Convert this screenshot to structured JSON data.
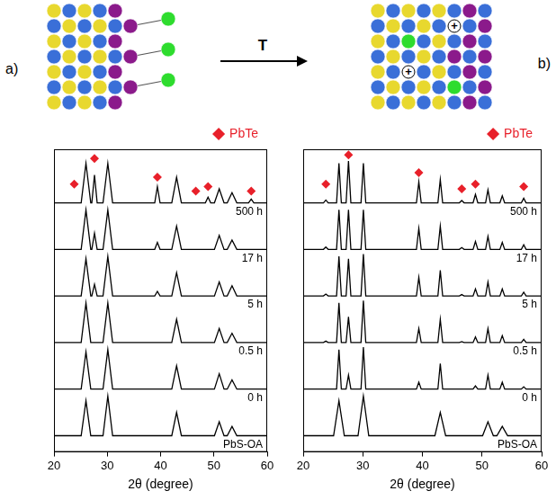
{
  "schematic": {
    "arrow_label": "T",
    "charge_label": "+"
  },
  "chart_data": [
    {
      "type": "line",
      "title": "a)",
      "x_label": "2θ (degree)",
      "xlim": [
        20,
        60
      ],
      "xticks": [
        20,
        30,
        40,
        50,
        60
      ],
      "ylim": [
        0,
        6.5
      ],
      "tick_labels": "x",
      "grid": false,
      "legend": "upper right",
      "series": [
        {
          "name": "PbS-OA",
          "color": "#000000",
          "x": [
            20,
            25.1,
            26.0,
            26.9,
            29.2,
            30.1,
            31.0,
            42.1,
            43.0,
            43.9,
            50.1,
            51.0,
            51.9,
            52.5,
            53.4,
            54.3,
            60
          ],
          "values": [
            0.35,
            0.35,
            1.1,
            0.35,
            0.35,
            1.2,
            0.35,
            0.35,
            0.85,
            0.35,
            0.35,
            0.65,
            0.35,
            0.35,
            0.55,
            0.35,
            0.35
          ]
        },
        {
          "name": "0 h",
          "color": "#000000",
          "x": [
            20,
            25.1,
            26.0,
            26.9,
            29.2,
            30.1,
            31.0,
            42.1,
            43.0,
            43.9,
            50.1,
            51.0,
            51.9,
            52.5,
            53.4,
            54.3,
            60
          ],
          "values": [
            1.35,
            1.35,
            2.15,
            1.35,
            1.35,
            2.2,
            1.35,
            1.35,
            1.85,
            1.35,
            1.35,
            1.68,
            1.35,
            1.35,
            1.55,
            1.35,
            1.35
          ]
        },
        {
          "name": "0.5 h",
          "color": "#000000",
          "x": [
            20,
            25.1,
            26.0,
            26.9,
            29.2,
            30.1,
            31.0,
            42.1,
            43.0,
            43.9,
            50.1,
            51.0,
            51.9,
            52.5,
            53.4,
            54.3,
            60
          ],
          "values": [
            2.35,
            2.35,
            3.2,
            2.35,
            2.35,
            3.2,
            2.35,
            2.35,
            2.85,
            2.35,
            2.35,
            2.65,
            2.35,
            2.35,
            2.55,
            2.35,
            2.35
          ]
        },
        {
          "name": "5 h",
          "color": "#000000",
          "x": [
            20,
            25.1,
            26.0,
            26.9,
            27.1,
            27.6,
            28.1,
            29.2,
            30.1,
            31.0,
            38.9,
            39.4,
            39.9,
            42.1,
            43.0,
            43.9,
            50.1,
            51.0,
            51.9,
            52.5,
            53.4,
            54.3,
            60
          ],
          "values": [
            3.35,
            3.35,
            4.15,
            3.35,
            3.35,
            3.6,
            3.35,
            3.35,
            4.2,
            3.35,
            3.35,
            3.45,
            3.35,
            3.35,
            3.85,
            3.35,
            3.35,
            3.65,
            3.35,
            3.35,
            3.57,
            3.35,
            3.35
          ]
        },
        {
          "name": "17 h",
          "color": "#000000",
          "x": [
            20,
            25.1,
            26.0,
            26.9,
            27.1,
            27.6,
            28.1,
            29.2,
            30.1,
            31.0,
            38.9,
            39.4,
            39.9,
            42.1,
            43.0,
            43.9,
            50.1,
            51.0,
            51.9,
            52.5,
            53.4,
            54.3,
            60
          ],
          "values": [
            4.35,
            4.35,
            5.2,
            4.35,
            4.35,
            4.7,
            4.35,
            4.35,
            5.2,
            4.35,
            4.35,
            4.5,
            4.35,
            4.35,
            4.85,
            4.35,
            4.35,
            4.65,
            4.35,
            4.35,
            4.55,
            4.35,
            4.35
          ]
        },
        {
          "name": "500 h",
          "color": "#000000",
          "x": [
            20,
            25.1,
            26.0,
            26.9,
            27.1,
            27.6,
            28.1,
            29.2,
            30.1,
            31.0,
            38.9,
            39.4,
            39.9,
            42.1,
            43.0,
            43.9,
            48.4,
            48.9,
            49.4,
            50.1,
            51.0,
            51.9,
            52.5,
            53.4,
            54.3,
            56.5,
            57.0,
            57.5,
            60
          ],
          "values": [
            5.35,
            5.35,
            6.2,
            5.35,
            5.35,
            5.95,
            5.35,
            5.35,
            6.2,
            5.35,
            5.35,
            5.7,
            5.35,
            5.35,
            5.9,
            5.35,
            5.35,
            5.47,
            5.35,
            5.35,
            5.65,
            5.35,
            5.35,
            5.57,
            5.35,
            5.35,
            5.43,
            5.35,
            5.35
          ]
        },
        {
          "name": "PbTe",
          "type": "scatter",
          "marker": "diamond",
          "color": "#e8202a",
          "x": [
            23.8,
            27.6,
            39.4,
            46.6,
            48.9,
            57.0
          ],
          "values": [
            5.75,
            6.3,
            5.9,
            5.6,
            5.7,
            5.6
          ]
        }
      ]
    },
    {
      "type": "line",
      "title": "b)",
      "x_label": "2θ (degree)",
      "xlim": [
        20,
        60
      ],
      "xticks": [
        20,
        30,
        40,
        50,
        60
      ],
      "ylim": [
        0,
        6.5
      ],
      "tick_labels": "x",
      "grid": false,
      "legend": "upper right",
      "series": [
        {
          "name": "PbS-OA",
          "color": "#000000",
          "x": [
            20,
            25.1,
            26.0,
            26.9,
            29.2,
            30.1,
            31.0,
            42.1,
            43.0,
            43.9,
            50.1,
            51.0,
            51.9,
            52.5,
            53.4,
            54.3,
            60
          ],
          "values": [
            0.35,
            0.35,
            1.1,
            0.35,
            0.35,
            1.2,
            0.35,
            0.35,
            0.85,
            0.35,
            0.35,
            0.65,
            0.35,
            0.35,
            0.55,
            0.35,
            0.35
          ]
        },
        {
          "name": "0 h",
          "color": "#000000",
          "x": [
            20,
            23.4,
            23.8,
            24.2,
            25.6,
            26.0,
            26.4,
            27.2,
            27.6,
            28.0,
            29.7,
            30.1,
            30.5,
            39.0,
            39.4,
            39.8,
            42.6,
            43.0,
            43.4,
            46.2,
            46.6,
            47.0,
            48.5,
            48.9,
            49.3,
            50.6,
            51.0,
            51.4,
            53.0,
            53.4,
            53.8,
            56.6,
            57.0,
            57.4,
            60
          ],
          "values": [
            1.35,
            1.35,
            1.35,
            1.35,
            1.35,
            2.2,
            1.35,
            1.35,
            1.65,
            1.35,
            1.35,
            2.25,
            1.35,
            1.35,
            1.5,
            1.35,
            1.35,
            1.9,
            1.35,
            1.35,
            1.35,
            1.35,
            1.35,
            1.42,
            1.35,
            1.35,
            1.65,
            1.35,
            1.35,
            1.5,
            1.35,
            1.35,
            1.4,
            1.35,
            1.35
          ]
        },
        {
          "name": "0.5 h",
          "color": "#000000",
          "x": [
            20,
            23.4,
            23.8,
            24.2,
            25.6,
            26.0,
            26.4,
            27.2,
            27.6,
            28.0,
            29.7,
            30.1,
            30.5,
            39.0,
            39.4,
            39.8,
            42.6,
            43.0,
            43.4,
            46.2,
            46.6,
            47.0,
            48.5,
            48.9,
            49.3,
            50.6,
            51.0,
            51.4,
            53.0,
            53.4,
            53.8,
            56.6,
            57.0,
            57.4,
            60
          ],
          "values": [
            2.35,
            2.35,
            2.38,
            2.35,
            2.35,
            3.2,
            2.35,
            2.35,
            2.9,
            2.35,
            2.35,
            3.25,
            2.35,
            2.35,
            2.65,
            2.35,
            2.35,
            2.85,
            2.35,
            2.35,
            2.37,
            2.35,
            2.35,
            2.47,
            2.35,
            2.35,
            2.65,
            2.35,
            2.35,
            2.5,
            2.35,
            2.35,
            2.42,
            2.35,
            2.35
          ]
        },
        {
          "name": "5 h",
          "color": "#000000",
          "x": [
            20,
            23.4,
            23.8,
            24.2,
            25.6,
            26.0,
            26.4,
            27.2,
            27.6,
            28.0,
            29.7,
            30.1,
            30.5,
            39.0,
            39.4,
            39.8,
            42.6,
            43.0,
            43.4,
            46.2,
            46.6,
            47.0,
            48.5,
            48.9,
            49.3,
            50.6,
            51.0,
            51.4,
            53.0,
            53.4,
            53.8,
            56.6,
            57.0,
            57.4,
            60
          ],
          "values": [
            3.35,
            3.35,
            3.39,
            3.35,
            3.35,
            4.2,
            3.35,
            3.35,
            4.15,
            3.35,
            3.35,
            4.25,
            3.35,
            3.35,
            3.75,
            3.35,
            3.35,
            3.9,
            3.35,
            3.35,
            3.38,
            3.35,
            3.35,
            3.5,
            3.35,
            3.35,
            3.65,
            3.35,
            3.35,
            3.5,
            3.35,
            3.35,
            3.43,
            3.35,
            3.35
          ]
        },
        {
          "name": "17 h",
          "color": "#000000",
          "x": [
            20,
            23.4,
            23.8,
            24.2,
            25.6,
            26.0,
            26.4,
            27.2,
            27.6,
            28.0,
            29.7,
            30.1,
            30.5,
            39.0,
            39.4,
            39.8,
            42.6,
            43.0,
            43.4,
            46.2,
            46.6,
            47.0,
            48.5,
            48.9,
            49.3,
            50.6,
            51.0,
            51.4,
            53.0,
            53.4,
            53.8,
            56.6,
            57.0,
            57.4,
            60
          ],
          "values": [
            4.35,
            4.35,
            4.4,
            4.35,
            4.35,
            5.2,
            4.35,
            4.35,
            5.2,
            4.35,
            4.35,
            5.2,
            4.35,
            4.35,
            4.8,
            4.35,
            4.35,
            4.85,
            4.35,
            4.35,
            4.39,
            4.35,
            4.35,
            4.52,
            4.35,
            4.35,
            4.63,
            4.35,
            4.35,
            4.5,
            4.35,
            4.35,
            4.45,
            4.35,
            4.35
          ]
        },
        {
          "name": "500 h",
          "color": "#000000",
          "x": [
            20,
            23.4,
            23.8,
            24.2,
            25.6,
            26.0,
            26.4,
            27.2,
            27.6,
            28.0,
            29.7,
            30.1,
            30.5,
            39.0,
            39.4,
            39.8,
            42.6,
            43.0,
            43.4,
            46.2,
            46.6,
            47.0,
            48.5,
            48.9,
            49.3,
            50.6,
            51.0,
            51.4,
            53.0,
            53.4,
            53.8,
            56.6,
            57.0,
            57.4,
            60
          ],
          "values": [
            5.35,
            5.35,
            5.41,
            5.35,
            5.35,
            6.2,
            5.35,
            5.35,
            6.25,
            5.35,
            5.35,
            6.2,
            5.35,
            5.35,
            5.8,
            5.35,
            5.35,
            5.85,
            5.35,
            5.35,
            5.4,
            5.35,
            5.35,
            5.53,
            5.35,
            5.35,
            5.63,
            5.35,
            5.35,
            5.5,
            5.35,
            5.35,
            5.45,
            5.35,
            5.35
          ]
        },
        {
          "name": "PbTe",
          "type": "scatter",
          "marker": "diamond",
          "color": "#e8202a",
          "x": [
            23.8,
            27.6,
            39.4,
            46.6,
            48.9,
            57.0
          ],
          "values": [
            5.75,
            6.38,
            6.0,
            5.65,
            5.75,
            5.7
          ]
        }
      ]
    }
  ]
}
